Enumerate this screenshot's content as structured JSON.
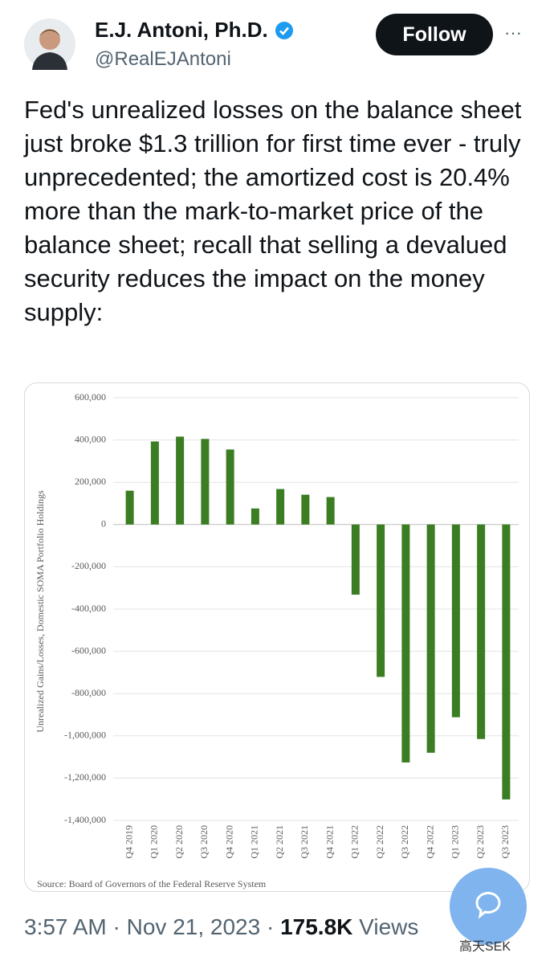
{
  "tweet": {
    "author_name": "E.J. Antoni, Ph.D.",
    "handle": "@RealEJAntoni",
    "follow_button": "Follow",
    "more": "···",
    "text": "Fed's unrealized losses on the balance sheet just broke $1.3 trillion for first time ever - truly unprecedented; the amortized cost is 20.4% more than the mark-to-market price of the balance sheet; recall that selling a devalued security reduces the impact on the money supply:",
    "time": "3:57 AM",
    "separator": "·",
    "date": "Nov 21, 2023",
    "views": "175.8K",
    "views_label": "Views",
    "watermark": "高天SEK"
  },
  "chart_data": {
    "type": "bar",
    "y_label": "Unrealized Gains/Losses, Domestic SOMA Portfolio Holdings",
    "source": "Source: Board of Governors of the Federal Reserve System",
    "categories": [
      "Q4 2019",
      "Q1 2020",
      "Q2 2020",
      "Q3 2020",
      "Q4 2020",
      "Q1 2021",
      "Q2 2021",
      "Q3 2021",
      "Q4 2021",
      "Q1 2022",
      "Q2 2022",
      "Q3 2022",
      "Q4 2022",
      "Q1 2023",
      "Q2 2023",
      "Q3 2023"
    ],
    "values": [
      160000,
      393000,
      416000,
      405000,
      355000,
      76000,
      168000,
      141000,
      130000,
      -332000,
      -721000,
      -1126000,
      -1080000,
      -912000,
      -1015000,
      -1301000
    ],
    "color": "#3a7d22",
    "ylim": [
      -1400000,
      600000
    ],
    "yticks": [
      {
        "value": -1400000,
        "label": "-1,400,000"
      },
      {
        "value": -1200000,
        "label": "-1,200,000"
      },
      {
        "value": -1000000,
        "label": "-1,000,000"
      },
      {
        "value": -800000,
        "label": "-800,000"
      },
      {
        "value": -600000,
        "label": "-600,000"
      },
      {
        "value": -400000,
        "label": "-400,000"
      },
      {
        "value": -200000,
        "label": "-200,000"
      },
      0,
      {
        "value": 200000,
        "label": "200,000"
      },
      {
        "value": 400000,
        "label": "400,000"
      },
      {
        "value": 600000,
        "label": "600,000"
      }
    ],
    "grid": true
  }
}
